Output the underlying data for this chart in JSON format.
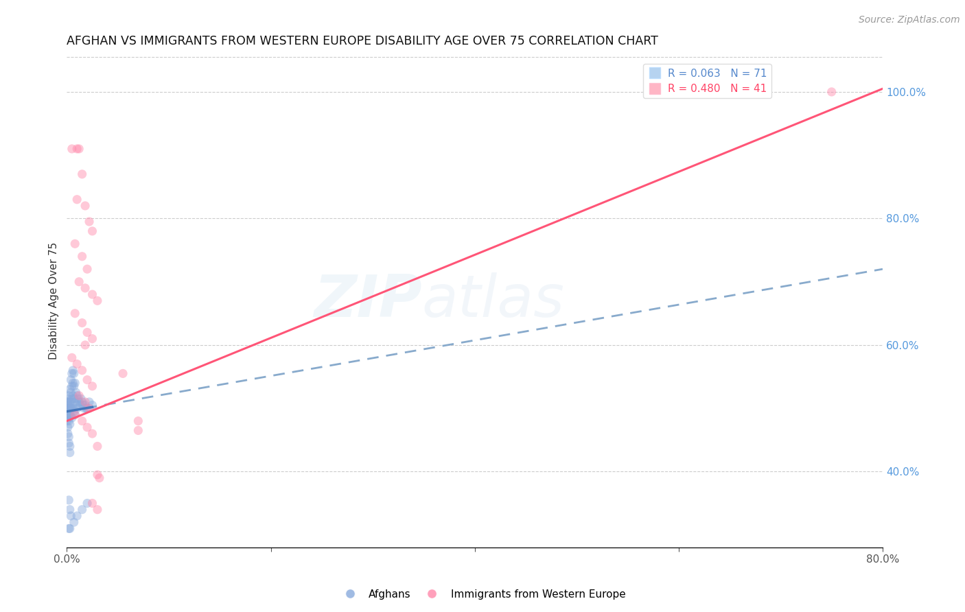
{
  "title": "AFGHAN VS IMMIGRANTS FROM WESTERN EUROPE DISABILITY AGE OVER 75 CORRELATION CHART",
  "source": "Source: ZipAtlas.com",
  "ylabel": "Disability Age Over 75",
  "xlim": [
    0.0,
    0.8
  ],
  "ylim": [
    0.28,
    1.06
  ],
  "right_yticks": [
    0.4,
    0.6,
    0.8,
    1.0
  ],
  "right_yticklabels": [
    "40.0%",
    "60.0%",
    "80.0%",
    "100.0%"
  ],
  "legend_label_afghans": "Afghans",
  "legend_label_western": "Immigrants from Western Europe",
  "scatter_alpha": 0.45,
  "scatter_size": 90,
  "dot_color_blue": "#88AADD",
  "dot_color_pink": "#FF88AA",
  "line_color_blue_solid": "#4477BB",
  "line_color_blue_dash": "#88AACC",
  "line_color_pink": "#FF5577",
  "grid_color": "#CCCCCC",
  "title_fontsize": 12.5,
  "axis_label_fontsize": 11,
  "tick_fontsize": 11,
  "legend_fontsize": 11,
  "source_fontsize": 10,
  "background_color": "#FFFFFF",
  "blue_dots": [
    [
      0.001,
      0.5
    ],
    [
      0.001,
      0.51
    ],
    [
      0.001,
      0.49
    ],
    [
      0.001,
      0.505
    ],
    [
      0.002,
      0.515
    ],
    [
      0.002,
      0.5
    ],
    [
      0.002,
      0.485
    ],
    [
      0.002,
      0.52
    ],
    [
      0.002,
      0.495
    ],
    [
      0.002,
      0.48
    ],
    [
      0.003,
      0.53
    ],
    [
      0.003,
      0.51
    ],
    [
      0.003,
      0.5
    ],
    [
      0.003,
      0.49
    ],
    [
      0.003,
      0.475
    ],
    [
      0.004,
      0.545
    ],
    [
      0.004,
      0.525
    ],
    [
      0.004,
      0.51
    ],
    [
      0.004,
      0.5
    ],
    [
      0.004,
      0.488
    ],
    [
      0.005,
      0.555
    ],
    [
      0.005,
      0.535
    ],
    [
      0.005,
      0.515
    ],
    [
      0.005,
      0.5
    ],
    [
      0.005,
      0.485
    ],
    [
      0.006,
      0.56
    ],
    [
      0.006,
      0.54
    ],
    [
      0.006,
      0.52
    ],
    [
      0.006,
      0.5
    ],
    [
      0.007,
      0.555
    ],
    [
      0.007,
      0.535
    ],
    [
      0.007,
      0.515
    ],
    [
      0.007,
      0.495
    ],
    [
      0.008,
      0.54
    ],
    [
      0.008,
      0.51
    ],
    [
      0.008,
      0.49
    ],
    [
      0.009,
      0.525
    ],
    [
      0.009,
      0.505
    ],
    [
      0.01,
      0.52
    ],
    [
      0.01,
      0.5
    ],
    [
      0.011,
      0.515
    ],
    [
      0.012,
      0.51
    ],
    [
      0.013,
      0.505
    ],
    [
      0.014,
      0.515
    ],
    [
      0.015,
      0.51
    ],
    [
      0.016,
      0.505
    ],
    [
      0.017,
      0.5
    ],
    [
      0.018,
      0.505
    ],
    [
      0.019,
      0.5
    ],
    [
      0.02,
      0.5
    ],
    [
      0.022,
      0.51
    ],
    [
      0.025,
      0.505
    ],
    [
      0.0,
      0.5
    ],
    [
      0.0,
      0.49
    ],
    [
      0.0,
      0.51
    ],
    [
      0.0,
      0.48
    ],
    [
      0.001,
      0.47
    ],
    [
      0.001,
      0.46
    ],
    [
      0.002,
      0.455
    ],
    [
      0.002,
      0.445
    ],
    [
      0.003,
      0.44
    ],
    [
      0.003,
      0.43
    ],
    [
      0.002,
      0.355
    ],
    [
      0.003,
      0.34
    ],
    [
      0.004,
      0.33
    ],
    [
      0.007,
      0.32
    ],
    [
      0.002,
      0.31
    ],
    [
      0.003,
      0.31
    ],
    [
      0.01,
      0.33
    ],
    [
      0.015,
      0.34
    ],
    [
      0.02,
      0.35
    ]
  ],
  "pink_dots": [
    [
      0.005,
      0.91
    ],
    [
      0.01,
      0.91
    ],
    [
      0.012,
      0.91
    ],
    [
      0.015,
      0.87
    ],
    [
      0.01,
      0.83
    ],
    [
      0.018,
      0.82
    ],
    [
      0.022,
      0.795
    ],
    [
      0.025,
      0.78
    ],
    [
      0.008,
      0.76
    ],
    [
      0.015,
      0.74
    ],
    [
      0.02,
      0.72
    ],
    [
      0.012,
      0.7
    ],
    [
      0.018,
      0.69
    ],
    [
      0.025,
      0.68
    ],
    [
      0.03,
      0.67
    ],
    [
      0.008,
      0.65
    ],
    [
      0.015,
      0.635
    ],
    [
      0.02,
      0.62
    ],
    [
      0.025,
      0.61
    ],
    [
      0.018,
      0.6
    ],
    [
      0.005,
      0.58
    ],
    [
      0.01,
      0.57
    ],
    [
      0.015,
      0.56
    ],
    [
      0.02,
      0.545
    ],
    [
      0.025,
      0.535
    ],
    [
      0.012,
      0.52
    ],
    [
      0.018,
      0.51
    ],
    [
      0.022,
      0.5
    ],
    [
      0.008,
      0.49
    ],
    [
      0.015,
      0.48
    ],
    [
      0.02,
      0.47
    ],
    [
      0.025,
      0.46
    ],
    [
      0.03,
      0.44
    ],
    [
      0.055,
      0.555
    ],
    [
      0.07,
      0.48
    ],
    [
      0.03,
      0.395
    ],
    [
      0.07,
      0.465
    ],
    [
      0.025,
      0.35
    ],
    [
      0.03,
      0.34
    ],
    [
      0.75,
      1.0
    ],
    [
      0.032,
      0.39
    ]
  ],
  "pink_line_x": [
    0.0,
    0.8
  ],
  "pink_line_y": [
    0.48,
    1.005
  ],
  "blue_dash_line_x": [
    0.0,
    0.8
  ],
  "blue_dash_line_y": [
    0.495,
    0.72
  ],
  "blue_solid_line_x": [
    0.0,
    0.025
  ],
  "blue_solid_line_y": [
    0.495,
    0.502
  ]
}
